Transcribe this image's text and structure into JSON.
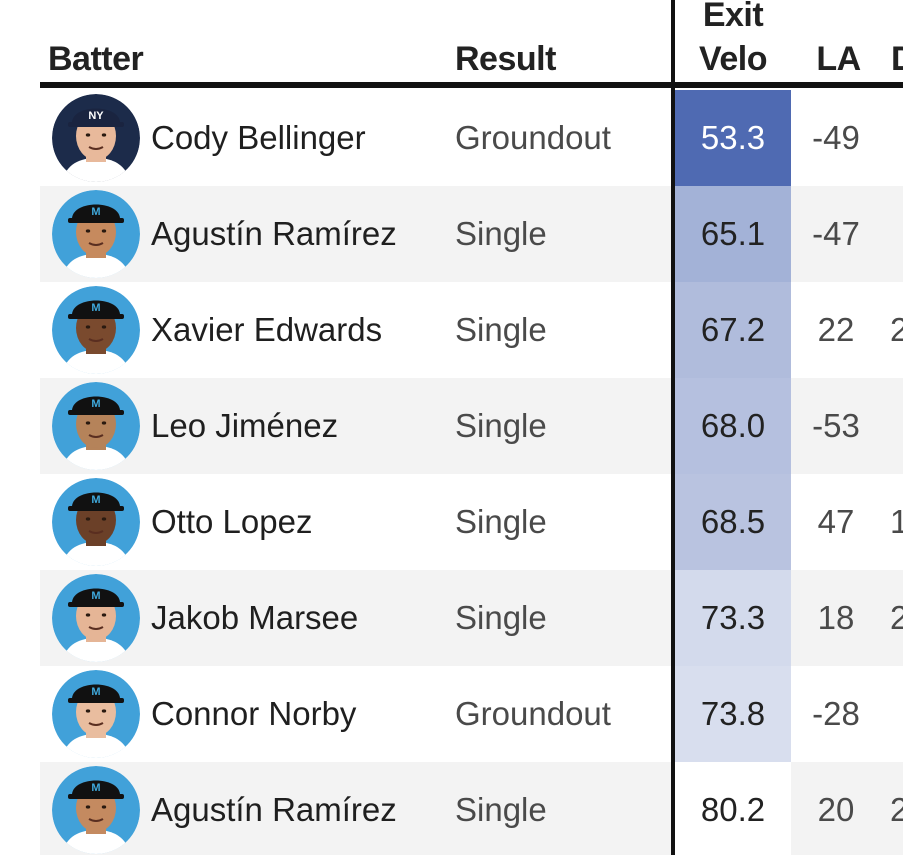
{
  "columns": {
    "batter": "Batter",
    "result": "Result",
    "exit_velo_line1": "Exit",
    "exit_velo_line2": "Velo",
    "la": "LA",
    "dist_partial": "D"
  },
  "colors": {
    "header_rule": "#111111",
    "alt_row": "#f3f3f3",
    "exit_velo_scale_dark": "#4f6ab2",
    "exit_velo_scale_light": "#ffffff"
  },
  "rows": [
    {
      "name": "Cody Bellinger",
      "result": "Groundout",
      "exit_velo": "53.3",
      "la": "-49",
      "dist": "",
      "team": "NYY",
      "ev_shade": 1.0
    },
    {
      "name": "Agustín Ramírez",
      "result": "Single",
      "exit_velo": "65.1",
      "la": "-47",
      "dist": "",
      "team": "MIA",
      "ev_shade": 0.52
    },
    {
      "name": "Xavier Edwards",
      "result": "Single",
      "exit_velo": "67.2",
      "la": "22",
      "dist": "2",
      "team": "MIA",
      "ev_shade": 0.45
    },
    {
      "name": "Leo Jiménez",
      "result": "Single",
      "exit_velo": "68.0",
      "la": "-53",
      "dist": "",
      "team": "MIA",
      "ev_shade": 0.42
    },
    {
      "name": "Otto Lopez",
      "result": "Single",
      "exit_velo": "68.5",
      "la": "47",
      "dist": "1",
      "team": "MIA",
      "ev_shade": 0.4
    },
    {
      "name": "Jakob Marsee",
      "result": "Single",
      "exit_velo": "73.3",
      "la": "18",
      "dist": "2",
      "team": "MIA",
      "ev_shade": 0.25
    },
    {
      "name": "Connor Norby",
      "result": "Groundout",
      "exit_velo": "73.8",
      "la": "-28",
      "dist": "",
      "team": "MIA",
      "ev_shade": 0.22
    },
    {
      "name": "Agustín Ramírez",
      "result": "Single",
      "exit_velo": "80.2",
      "la": "20",
      "dist": "2",
      "team": "MIA",
      "ev_shade": 0.0
    }
  ]
}
